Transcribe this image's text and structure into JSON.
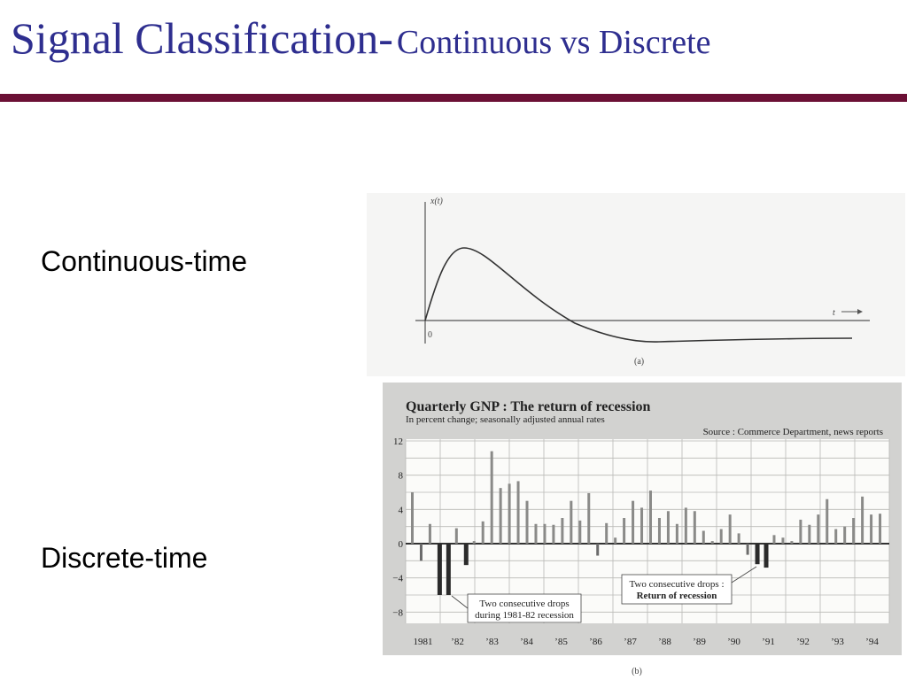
{
  "slide": {
    "title_main": "Signal Classification-",
    "title_sub": "Continuous vs Discrete",
    "label_continuous": "Continuous-time",
    "label_discrete": "Discrete-time"
  },
  "figure_a": {
    "y_label": "x(t)",
    "t_label": "t",
    "origin_label": "0",
    "caption": "(a)"
  },
  "figure_b": {
    "caption": "(b)"
  },
  "chart_data": {
    "type": "bar",
    "title": "Quarterly GNP : The return of recession",
    "subtitle": "In percent change; seasonally adjusted annual rates",
    "source": "Source : Commerce Department, news reports",
    "ylim": [
      -10,
      12
    ],
    "yticks": [
      "12",
      "8",
      "4",
      "0",
      "−4",
      "−8"
    ],
    "ytick_values": [
      12,
      8,
      4,
      0,
      -4,
      -8
    ],
    "year_labels": [
      "1981",
      "’82",
      "’83",
      "’84",
      "’85",
      "’86",
      "’87",
      "’88",
      "’89",
      "’90",
      "’91",
      "’92",
      "’93",
      "’94"
    ],
    "grid": true,
    "values": [
      6,
      -2,
      2.3,
      -6,
      -6,
      1.8,
      -2.5,
      0.3,
      2.6,
      10.8,
      6.5,
      7,
      7.3,
      5,
      2.3,
      2.3,
      2.2,
      3,
      5,
      2.7,
      5.9,
      -1.4,
      2.4,
      0.7,
      3,
      5,
      4.2,
      6.2,
      3,
      3.8,
      2.3,
      4.2,
      3.8,
      1.5,
      0.3,
      1.7,
      3.4,
      1.2,
      -1.3,
      -2.4,
      -2.8,
      1,
      0.7,
      0.3,
      2.8,
      2.2,
      3.4,
      5.2,
      1.7,
      2,
      3,
      5.5,
      3.4,
      3.5
    ],
    "annotations": [
      {
        "lines": [
          "Two consecutive drops",
          "during 1981-82 recession"
        ]
      },
      {
        "lines": [
          "Two consecutive drops :",
          "Return of recession"
        ]
      }
    ]
  }
}
